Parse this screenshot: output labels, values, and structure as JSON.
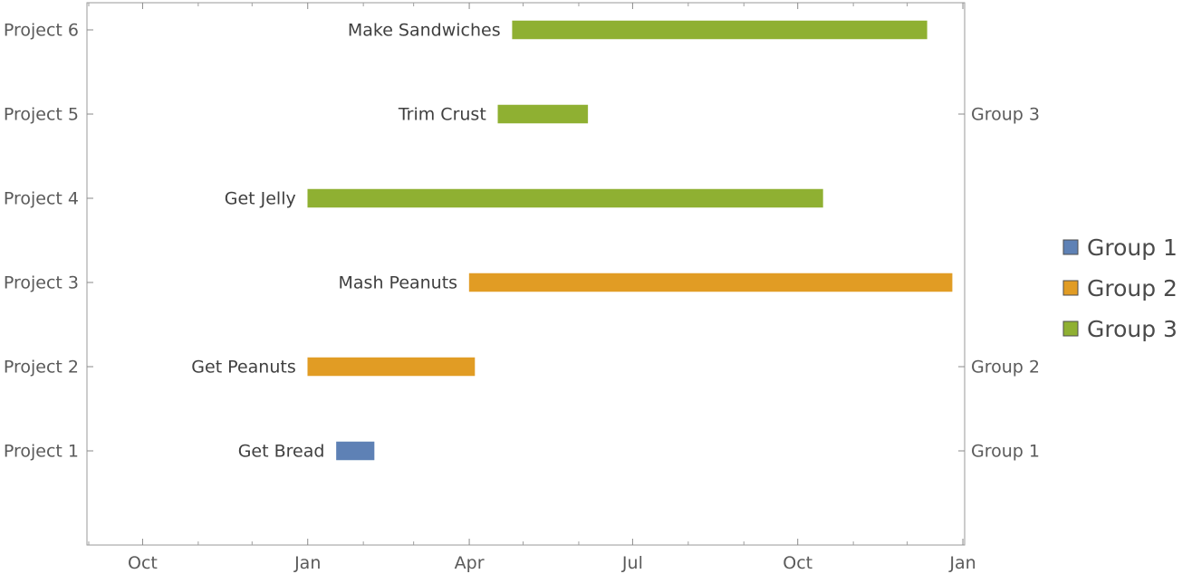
{
  "chart_data": {
    "type": "gantt",
    "title": "",
    "xlabel": "",
    "ylabel": "",
    "x_axis": {
      "type": "date",
      "range": [
        "2013-08-31",
        "2015-01-02"
      ],
      "major_ticks": [
        {
          "date": "2013-10-01",
          "label": "Oct"
        },
        {
          "date": "2014-01-01",
          "label": "Jan"
        },
        {
          "date": "2014-04-01",
          "label": "Apr"
        },
        {
          "date": "2014-07-01",
          "label": "Jul"
        },
        {
          "date": "2014-10-01",
          "label": "Oct"
        },
        {
          "date": "2015-01-01",
          "label": "Jan"
        }
      ],
      "minor_ticks": [
        "2013-09-01",
        "2013-11-01",
        "2013-12-01",
        "2014-02-01",
        "2014-03-01",
        "2014-05-01",
        "2014-06-01",
        "2014-08-01",
        "2014-09-01",
        "2014-11-01",
        "2014-12-01"
      ]
    },
    "y_axis": {
      "categories": [
        "Project 1",
        "Project 2",
        "Project 3",
        "Project 4",
        "Project 5",
        "Project 6"
      ]
    },
    "right_axis_labels": [
      {
        "row": "Project 1",
        "label": "Group 1"
      },
      {
        "row": "Project 2",
        "label": "Group 2"
      },
      {
        "row": "Project 5",
        "label": "Group 3"
      }
    ],
    "series": [
      {
        "name": "Group 1",
        "color": "#5e81b5"
      },
      {
        "name": "Group 2",
        "color": "#e19c24"
      },
      {
        "name": "Group 3",
        "color": "#8fb032"
      }
    ],
    "tasks": [
      {
        "project": "Project 1",
        "label": "Get Bread",
        "group": "Group 1",
        "start": "2014-01-17",
        "end": "2014-02-07"
      },
      {
        "project": "Project 2",
        "label": "Get Peanuts",
        "group": "Group 2",
        "start": "2014-01-01",
        "end": "2014-04-04"
      },
      {
        "project": "Project 3",
        "label": "Mash Peanuts",
        "group": "Group 2",
        "start": "2014-04-01",
        "end": "2014-12-26"
      },
      {
        "project": "Project 4",
        "label": "Get Jelly",
        "group": "Group 3",
        "start": "2014-01-01",
        "end": "2014-10-15"
      },
      {
        "project": "Project 5",
        "label": "Trim Crust",
        "group": "Group 3",
        "start": "2014-04-17",
        "end": "2014-06-06"
      },
      {
        "project": "Project 6",
        "label": "Make Sandwiches",
        "group": "Group 3",
        "start": "2014-04-25",
        "end": "2014-12-12"
      }
    ],
    "legend": {
      "position": "right",
      "entries": [
        "Group 1",
        "Group 2",
        "Group 3"
      ]
    },
    "grid": false
  }
}
